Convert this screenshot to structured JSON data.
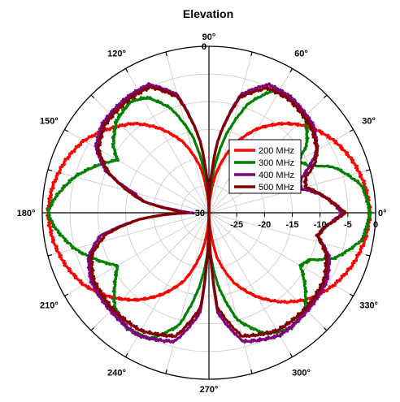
{
  "chart_data": {
    "type": "line",
    "subtype": "polar",
    "title": "Elevation",
    "angle_unit": "degrees",
    "angle_ticks": [
      0,
      30,
      60,
      90,
      120,
      150,
      180,
      210,
      240,
      270,
      300,
      330
    ],
    "angle_tick_labels": [
      "0°",
      "30°",
      "60°",
      "90°",
      "120°",
      "150°",
      "180°",
      "210°",
      "240°",
      "270°",
      "300°",
      "330°"
    ],
    "radial_range": [
      -30,
      0
    ],
    "radial_ticks": [
      -30,
      -25,
      -20,
      -15,
      -10,
      -5,
      0
    ],
    "radial_tick_labels": [
      "-30",
      "-25",
      "-20",
      "-15",
      "-10",
      "-5",
      "0"
    ],
    "grid": true,
    "legend_position": "right-center",
    "series": [
      {
        "name": "200 MHz",
        "color": "#ff0000",
        "points": [
          [
            0,
            -1
          ],
          [
            10,
            -1.5
          ],
          [
            20,
            -2.5
          ],
          [
            30,
            -4
          ],
          [
            40,
            -6
          ],
          [
            50,
            -9
          ],
          [
            60,
            -12.5
          ],
          [
            70,
            -17
          ],
          [
            80,
            -23
          ],
          [
            85,
            -27
          ],
          [
            90,
            -30
          ],
          [
            95,
            -27
          ],
          [
            100,
            -22
          ],
          [
            110,
            -16.5
          ],
          [
            120,
            -12.5
          ],
          [
            130,
            -9
          ],
          [
            140,
            -6.5
          ],
          [
            150,
            -4
          ],
          [
            160,
            -2.5
          ],
          [
            170,
            -1.5
          ],
          [
            180,
            -1
          ],
          [
            190,
            -1.5
          ],
          [
            200,
            -2.5
          ],
          [
            210,
            -4
          ],
          [
            220,
            -6.5
          ],
          [
            230,
            -9.5
          ],
          [
            240,
            -13
          ],
          [
            250,
            -17
          ],
          [
            260,
            -23
          ],
          [
            265,
            -27
          ],
          [
            270,
            -30
          ],
          [
            275,
            -27
          ],
          [
            280,
            -22
          ],
          [
            290,
            -16.5
          ],
          [
            300,
            -12.5
          ],
          [
            310,
            -9
          ],
          [
            320,
            -6
          ],
          [
            330,
            -4
          ],
          [
            340,
            -2.5
          ],
          [
            350,
            -1.5
          ],
          [
            360,
            -1
          ]
        ]
      },
      {
        "name": "300 MHz",
        "color": "#008000",
        "points": [
          [
            0,
            -1
          ],
          [
            10,
            -2
          ],
          [
            20,
            -6
          ],
          [
            25,
            -10
          ],
          [
            30,
            -11.5
          ],
          [
            35,
            -8.5
          ],
          [
            45,
            -5.5
          ],
          [
            55,
            -4.5
          ],
          [
            62,
            -5
          ],
          [
            70,
            -9
          ],
          [
            78,
            -16
          ],
          [
            85,
            -24
          ],
          [
            90,
            -30
          ],
          [
            95,
            -24
          ],
          [
            102,
            -16
          ],
          [
            110,
            -10
          ],
          [
            118,
            -6.5
          ],
          [
            125,
            -5.5
          ],
          [
            135,
            -6.5
          ],
          [
            145,
            -9
          ],
          [
            150,
            -11
          ],
          [
            155,
            -9
          ],
          [
            165,
            -5
          ],
          [
            175,
            -2
          ],
          [
            180,
            -1
          ],
          [
            185,
            -2
          ],
          [
            195,
            -5
          ],
          [
            205,
            -9
          ],
          [
            210,
            -11
          ],
          [
            215,
            -9.5
          ],
          [
            225,
            -6
          ],
          [
            235,
            -4.5
          ],
          [
            245,
            -5
          ],
          [
            255,
            -9
          ],
          [
            263,
            -17
          ],
          [
            270,
            -25
          ],
          [
            277,
            -17
          ],
          [
            285,
            -10
          ],
          [
            295,
            -6
          ],
          [
            305,
            -4.5
          ],
          [
            315,
            -5.5
          ],
          [
            322,
            -8
          ],
          [
            330,
            -11
          ],
          [
            335,
            -10
          ],
          [
            340,
            -6
          ],
          [
            350,
            -2
          ],
          [
            360,
            -1
          ]
        ]
      },
      {
        "name": "400 MHz",
        "color": "#800080",
        "points": [
          [
            0,
            -6
          ],
          [
            8,
            -9
          ],
          [
            15,
            -13
          ],
          [
            20,
            -12.5
          ],
          [
            25,
            -10
          ],
          [
            30,
            -7.5
          ],
          [
            40,
            -5.5
          ],
          [
            55,
            -4.5
          ],
          [
            65,
            -4.5
          ],
          [
            75,
            -8
          ],
          [
            83,
            -17
          ],
          [
            90,
            -30
          ],
          [
            97,
            -17
          ],
          [
            105,
            -8
          ],
          [
            115,
            -4.5
          ],
          [
            125,
            -4.5
          ],
          [
            140,
            -5
          ],
          [
            150,
            -6.5
          ],
          [
            158,
            -10
          ],
          [
            165,
            -16
          ],
          [
            170,
            -18
          ],
          [
            175,
            -24
          ],
          [
            180,
            -27
          ],
          [
            185,
            -18
          ],
          [
            192,
            -10
          ],
          [
            200,
            -7
          ],
          [
            210,
            -5.5
          ],
          [
            225,
            -5
          ],
          [
            240,
            -4.5
          ],
          [
            255,
            -6
          ],
          [
            265,
            -12
          ],
          [
            270,
            -30
          ],
          [
            275,
            -12
          ],
          [
            285,
            -6
          ],
          [
            300,
            -4.5
          ],
          [
            315,
            -5
          ],
          [
            330,
            -5.5
          ],
          [
            340,
            -7
          ],
          [
            348,
            -10
          ],
          [
            353,
            -9
          ],
          [
            360,
            -6
          ]
        ]
      },
      {
        "name": "500 MHz",
        "color": "#800000",
        "points": [
          [
            0,
            -5.5
          ],
          [
            8,
            -9
          ],
          [
            15,
            -12
          ],
          [
            20,
            -11.5
          ],
          [
            25,
            -9
          ],
          [
            30,
            -7.5
          ],
          [
            40,
            -6
          ],
          [
            55,
            -5
          ],
          [
            65,
            -5.2
          ],
          [
            75,
            -8.5
          ],
          [
            83,
            -17
          ],
          [
            90,
            -30
          ],
          [
            97,
            -17
          ],
          [
            105,
            -8.5
          ],
          [
            115,
            -5
          ],
          [
            125,
            -5
          ],
          [
            140,
            -5.5
          ],
          [
            150,
            -7
          ],
          [
            158,
            -10.5
          ],
          [
            165,
            -15
          ],
          [
            170,
            -18
          ],
          [
            175,
            -23
          ],
          [
            180,
            -26
          ],
          [
            185,
            -18
          ],
          [
            192,
            -11
          ],
          [
            200,
            -7.5
          ],
          [
            210,
            -6
          ],
          [
            225,
            -5.5
          ],
          [
            240,
            -5.5
          ],
          [
            255,
            -7
          ],
          [
            265,
            -13
          ],
          [
            270,
            -30
          ],
          [
            275,
            -13
          ],
          [
            285,
            -7
          ],
          [
            300,
            -5.5
          ],
          [
            315,
            -5.5
          ],
          [
            330,
            -6
          ],
          [
            340,
            -7.5
          ],
          [
            348,
            -10
          ],
          [
            353,
            -9
          ],
          [
            360,
            -5.5
          ]
        ]
      }
    ]
  }
}
